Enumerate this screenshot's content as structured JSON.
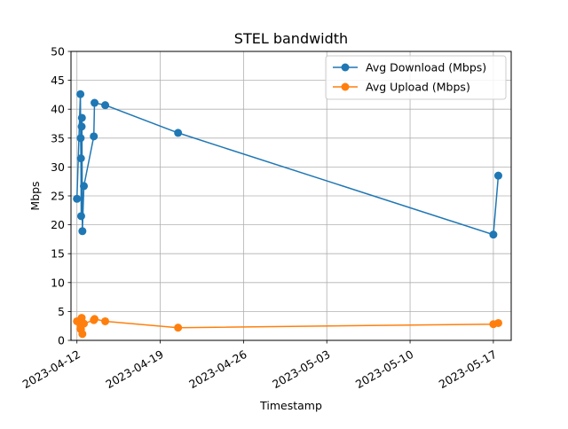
{
  "chart_data": {
    "type": "line",
    "title": "STEL bandwidth",
    "xlabel": "Timestamp",
    "ylabel": "Mbps",
    "x_axis_type": "date",
    "xlim": [
      "2023-04-11T12:00",
      "2023-05-18T12:00"
    ],
    "ylim": [
      0,
      50
    ],
    "y_ticks": [
      0,
      5,
      10,
      15,
      20,
      25,
      30,
      35,
      40,
      45,
      50
    ],
    "x_ticks": [
      "2023-04-12",
      "2023-04-19",
      "2023-04-26",
      "2023-05-03",
      "2023-05-10",
      "2023-05-17"
    ],
    "grid": true,
    "legend_position": "upper right",
    "series": [
      {
        "name": "Avg Download (Mbps)",
        "color": "#1f77b4",
        "marker": "circle",
        "points": [
          [
            "2023-04-12T00:00",
            24.5
          ],
          [
            "2023-04-12T07:00",
            42.6
          ],
          [
            "2023-04-12T07:30",
            35.0
          ],
          [
            "2023-04-12T08:00",
            31.5
          ],
          [
            "2023-04-12T08:30",
            21.5
          ],
          [
            "2023-04-12T09:30",
            37.0
          ],
          [
            "2023-04-12T10:00",
            38.5
          ],
          [
            "2023-04-12T11:00",
            18.9
          ],
          [
            "2023-04-12T14:00",
            26.7
          ],
          [
            "2023-04-13T10:00",
            35.3
          ],
          [
            "2023-04-13T11:30",
            41.1
          ],
          [
            "2023-04-14T09:00",
            40.7
          ],
          [
            "2023-04-20T12:00",
            35.9
          ],
          [
            "2023-05-17T00:00",
            18.3
          ],
          [
            "2023-05-17T10:00",
            28.5
          ]
        ]
      },
      {
        "name": "Avg Upload (Mbps)",
        "color": "#ff7f0e",
        "marker": "circle",
        "points": [
          [
            "2023-04-12T00:00",
            3.3
          ],
          [
            "2023-04-12T07:00",
            2.0
          ],
          [
            "2023-04-12T07:30",
            2.5
          ],
          [
            "2023-04-12T08:00",
            1.9
          ],
          [
            "2023-04-12T08:30",
            3.0
          ],
          [
            "2023-04-12T09:30",
            3.9
          ],
          [
            "2023-04-12T10:00",
            3.0
          ],
          [
            "2023-04-12T11:00",
            1.1
          ],
          [
            "2023-04-12T14:00",
            2.9
          ],
          [
            "2023-04-13T10:00",
            3.5
          ],
          [
            "2023-04-13T11:30",
            3.7
          ],
          [
            "2023-04-14T09:00",
            3.3
          ],
          [
            "2023-04-20T12:00",
            2.2
          ],
          [
            "2023-05-17T00:00",
            2.8
          ],
          [
            "2023-05-17T10:00",
            3.0
          ]
        ]
      }
    ]
  }
}
